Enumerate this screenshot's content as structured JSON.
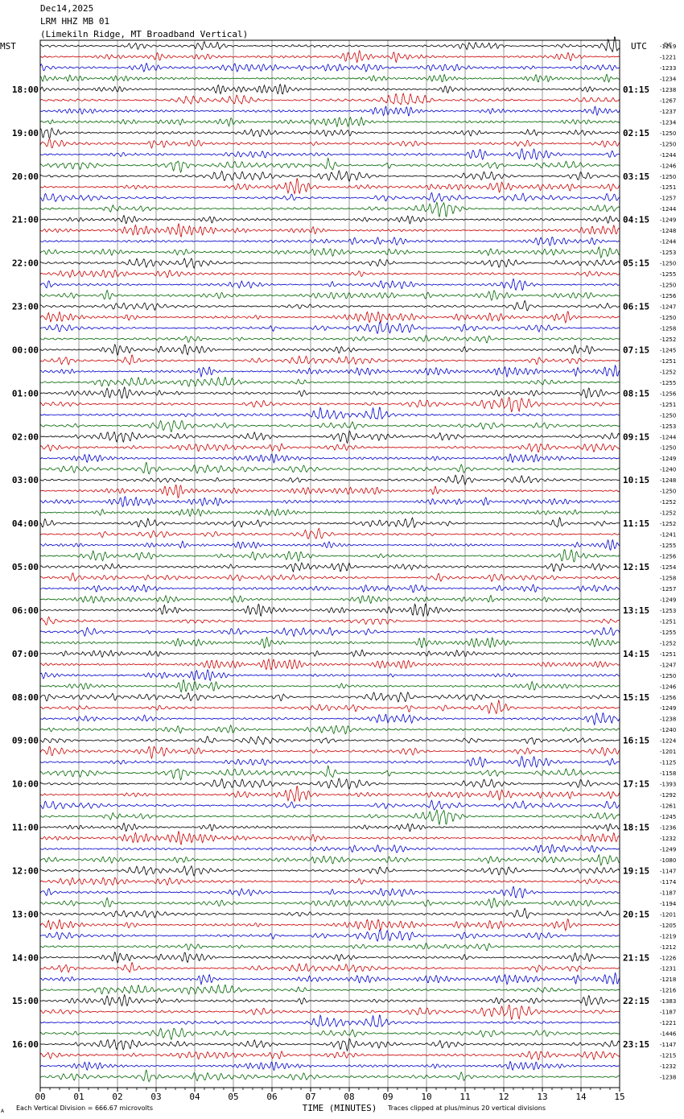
{
  "header": {
    "date": "Dec14,2025",
    "channel": "LRM HHZ MB 01",
    "location": "(Limekiln Ridge, MT Broadband Vertical)"
  },
  "chart_data": {
    "type": "line",
    "title": "Dec14,2025 LRM HHZ MB 01 (Limekiln Ridge, MT Broadband Vertical)",
    "left_timezone": "MST",
    "right_timezone": "UTC",
    "dc_label": "DC",
    "xlabel": "TIME (MINUTES)",
    "xlim": [
      0,
      15
    ],
    "xticks": [
      "00",
      "01",
      "02",
      "03",
      "04",
      "05",
      "06",
      "07",
      "08",
      "09",
      "10",
      "11",
      "12",
      "13",
      "14",
      "15"
    ],
    "rows_per_hour": 4,
    "row_count": 96,
    "left_hour_labels": [
      "18:00",
      "19:00",
      "20:00",
      "21:00",
      "22:00",
      "23:00",
      "00:00",
      "01:00",
      "02:00",
      "03:00",
      "04:00",
      "05:00",
      "06:00",
      "07:00",
      "08:00",
      "09:00",
      "10:00",
      "11:00",
      "12:00",
      "13:00",
      "14:00",
      "15:00",
      "16:00"
    ],
    "right_hour_labels": [
      "01:15",
      "02:15",
      "03:15",
      "04:15",
      "05:15",
      "06:15",
      "07:15",
      "08:15",
      "09:15",
      "10:15",
      "11:15",
      "12:15",
      "13:15",
      "14:15",
      "15:15",
      "16:15",
      "17:15",
      "18:15",
      "19:15",
      "20:15",
      "21:15",
      "22:15",
      "23:15"
    ],
    "trace_colors": [
      "#000000",
      "#cc0000",
      "#0000cc",
      "#006600"
    ],
    "grid": true,
    "dc_offsets": [
      -1219,
      -1221,
      -1233,
      -1234,
      -1238,
      -1267,
      -1237,
      -1234,
      -1250,
      -1250,
      -1244,
      -1246,
      -1250,
      -1251,
      -1257,
      -1244,
      -1249,
      -1248,
      -1244,
      -1253,
      -1250,
      -1255,
      -1250,
      -1256,
      -1247,
      -1250,
      -1258,
      -1252,
      -1245,
      -1251,
      -1252,
      -1255,
      -1256,
      -1251,
      -1250,
      -1253,
      -1244,
      -1250,
      -1249,
      -1240,
      -1248,
      -1250,
      -1252,
      -1252,
      -1252,
      -1241,
      -1255,
      -1256,
      -1254,
      -1258,
      -1257,
      -1249,
      -1253,
      -1251,
      -1255,
      -1252,
      -1251,
      -1247,
      -1250,
      -1246,
      -1256,
      -1249,
      -1238,
      -1240,
      -1224,
      -1201,
      -1125,
      -1158,
      -1393,
      -1292,
      -1261,
      -1245,
      -1236,
      -1232,
      -1249,
      -1080,
      -1147,
      -1174,
      -1187,
      -1194,
      -1201,
      -1205,
      -1219,
      -1212,
      -1226,
      -1231,
      -1218,
      -1216,
      -1383,
      -1187,
      -1221,
      -1446,
      -1147,
      -1215,
      -1232,
      -1238
    ]
  },
  "footer": {
    "scale_note": "Each Vertical Division =  666.67 microvolts",
    "clip_note": "Traces clipped at plus/minus 20 vertical divisions",
    "corner_mark": "A"
  }
}
